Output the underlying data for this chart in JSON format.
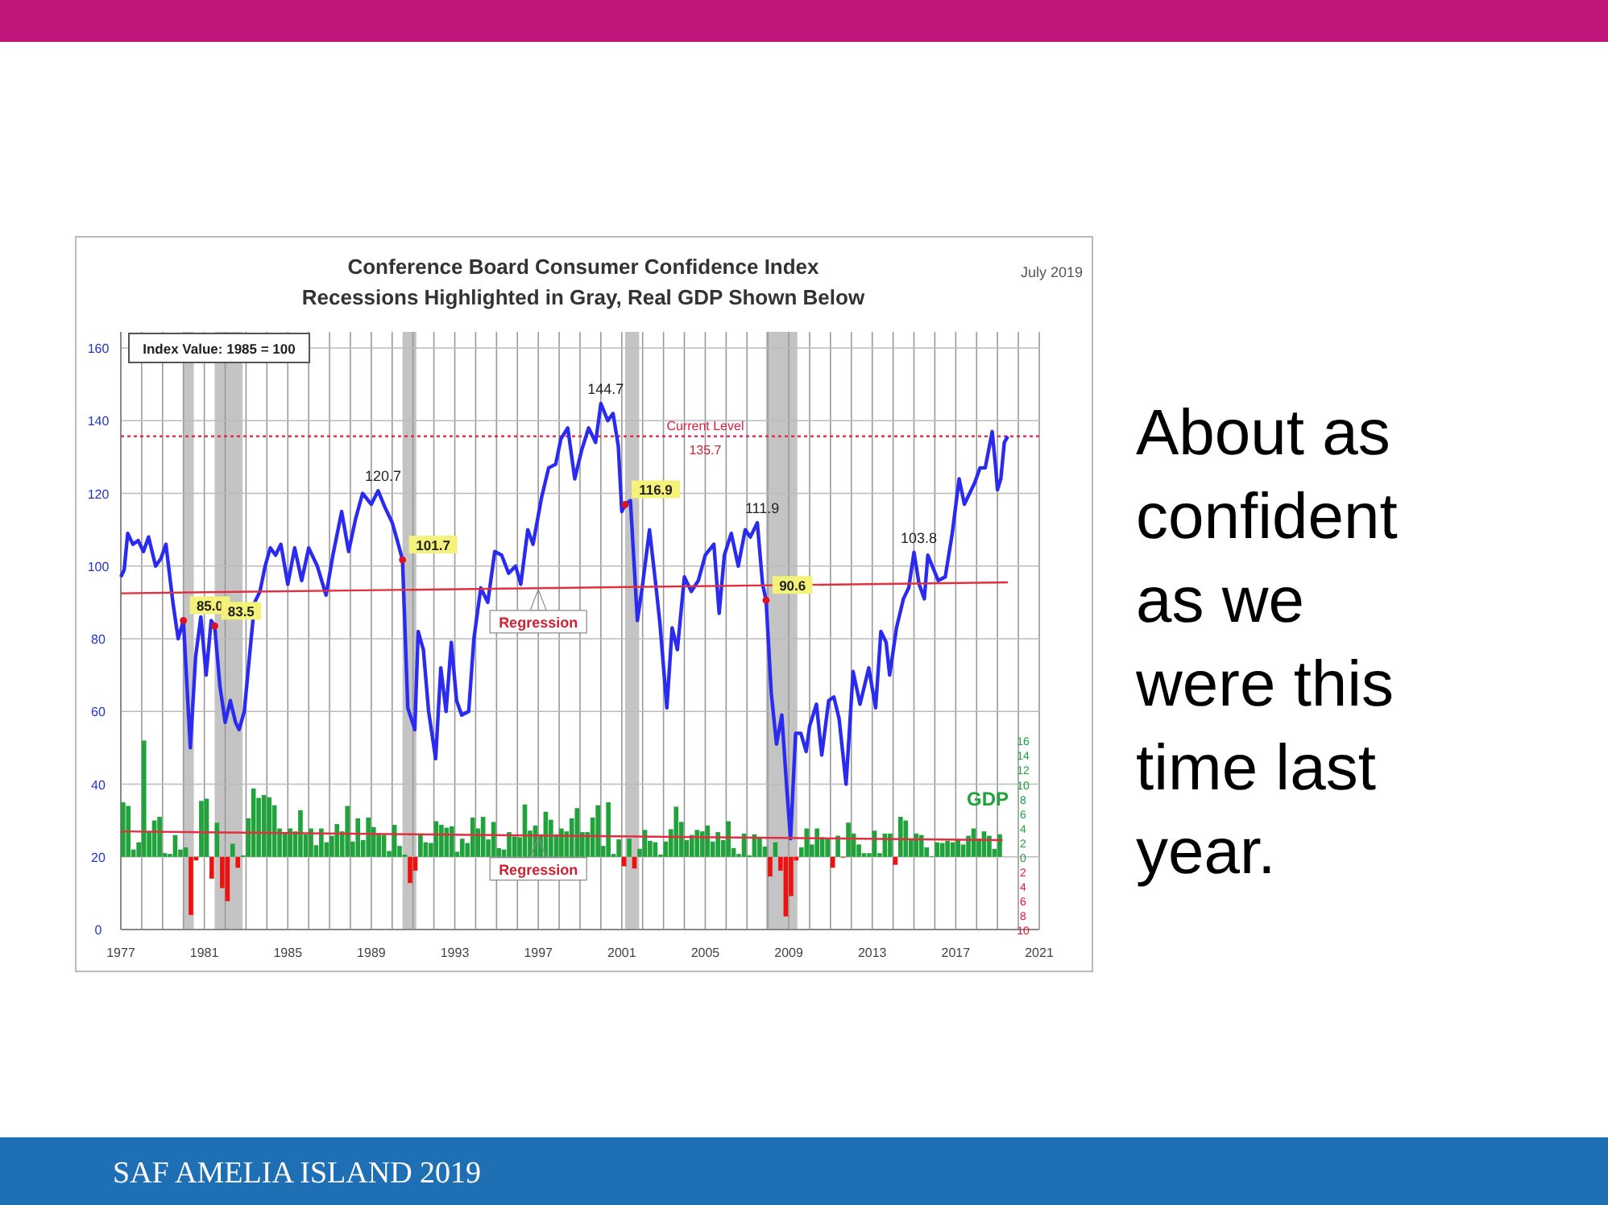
{
  "chart_data": {
    "type": "line",
    "title": "Conference Board Consumer Confidence Index",
    "subtitle": "Recessions Highlighted in Gray, Real GDP Shown Below",
    "y2label": "GDP",
    "grid": true,
    "marker": "none",
    "xlim": [
      "1977",
      "2021"
    ],
    "xticks": [
      {
        "value": "1977",
        "label": "1977"
      },
      {
        "value": "1978",
        "label": null
      },
      {
        "value": "1979",
        "label": null
      },
      {
        "value": "1980",
        "label": null
      },
      {
        "value": "1981",
        "label": "1981"
      },
      {
        "value": "1982",
        "label": null
      },
      {
        "value": "1983",
        "label": null
      },
      {
        "value": "1984",
        "label": null
      },
      {
        "value": "1985",
        "label": "1985"
      },
      {
        "value": "1986",
        "label": null
      },
      {
        "value": "1987",
        "label": null
      },
      {
        "value": "1988",
        "label": null
      },
      {
        "value": "1989",
        "label": "1989"
      },
      {
        "value": "1990",
        "label": null
      },
      {
        "value": "1991",
        "label": null
      },
      {
        "value": "1992",
        "label": null
      },
      {
        "value": "1993",
        "label": "1993"
      },
      {
        "value": "1994",
        "label": null
      },
      {
        "value": "1995",
        "label": null
      },
      {
        "value": "1996",
        "label": null
      },
      {
        "value": "1997",
        "label": "1997"
      },
      {
        "value": "1998",
        "label": null
      },
      {
        "value": "1999",
        "label": null
      },
      {
        "value": "2000",
        "label": null
      },
      {
        "value": "2001",
        "label": "2001"
      },
      {
        "value": "2002",
        "label": null
      },
      {
        "value": "2003",
        "label": null
      },
      {
        "value": "2004",
        "label": null
      },
      {
        "value": "2005",
        "label": "2005"
      },
      {
        "value": "2006",
        "label": null
      },
      {
        "value": "2007",
        "label": null
      },
      {
        "value": "2008",
        "label": null
      },
      {
        "value": "2009",
        "label": "2009"
      },
      {
        "value": "2010",
        "label": null
      },
      {
        "value": "2011",
        "label": null
      },
      {
        "value": "2012",
        "label": null
      },
      {
        "value": "2013",
        "label": "2013"
      },
      {
        "value": "2014",
        "label": null
      },
      {
        "value": "2015",
        "label": null
      },
      {
        "value": "2016",
        "label": null
      },
      {
        "value": "2017",
        "label": "2017"
      },
      {
        "value": "2018",
        "label": null
      },
      {
        "value": "2019",
        "label": null
      },
      {
        "value": "2020",
        "label": null
      },
      {
        "value": "2021",
        "label": "2021"
      }
    ],
    "ylim": [
      0,
      160
    ],
    "yticks": [
      0,
      20,
      40,
      60,
      80,
      100,
      120,
      140,
      160
    ],
    "y2lim": [
      -10,
      70
    ],
    "y2ticks": [
      {
        "value": -10,
        "label": "10"
      },
      {
        "value": -8,
        "label": "8"
      },
      {
        "value": -6,
        "label": "6"
      },
      {
        "value": -4,
        "label": "4"
      },
      {
        "value": -2,
        "label": "2"
      },
      0,
      2,
      4,
      6,
      8,
      10,
      12,
      14,
      16
    ],
    "bands": [
      {
        "axis": "x",
        "from": "1980-01",
        "to": "1980-07",
        "color": "#b0b0b0"
      },
      {
        "axis": "x",
        "from": "1981-07",
        "to": "1982-11",
        "color": "#b0b0b0"
      },
      {
        "axis": "x",
        "from": "1990-07",
        "to": "1991-03",
        "color": "#b0b0b0"
      },
      {
        "axis": "x",
        "from": "2001-03",
        "to": "2001-11",
        "color": "#b0b0b0"
      },
      {
        "axis": "x",
        "from": "2007-12",
        "to": "2009-06",
        "color": "#b0b0b0"
      }
    ],
    "ref_lines": [
      {
        "axis": "y",
        "value": 135.7,
        "label": "Current Level",
        "color": "#e02040",
        "line_style": "dotted"
      }
    ],
    "annotations": [
      "Index Value: 1985 = 100",
      "July 2019",
      "About as confident as we were this time last year.",
      "SAF AMELIA ISLAND 2019",
      {
        "text": "120.7",
        "x": "1989-05",
        "y": 120.7
      },
      {
        "text": "144.7",
        "x": "2000-01",
        "y": 144.7
      },
      {
        "text": "111.9",
        "x": "2007-07",
        "y": 111.9
      },
      {
        "text": "103.8",
        "x": "2015-01",
        "y": 103.8
      },
      {
        "text": "135.7",
        "x": "2005-01",
        "y": 135.7
      },
      {
        "text": "85.0",
        "x": "1980-01",
        "y": 85
      },
      {
        "text": "83.5",
        "x": "1981-07",
        "y": 83.5
      },
      {
        "text": "101.7",
        "x": "1990-07",
        "y": 101.7
      },
      {
        "text": "116.9",
        "x": "2001-03",
        "y": 116.9
      },
      {
        "text": "90.6",
        "x": "2007-12",
        "y": 90.6
      },
      {
        "text": "Regression",
        "x": "1997-01",
        "y": 94
      },
      {
        "text": "Regression",
        "x": "1997-01",
        "y": 26
      }
    ],
    "series": [
      {
        "type": "bar",
        "axis": "y2",
        "color": "#1fa33a",
        "x": [
          "1977-01",
          "1977-04",
          "1977-07",
          "1977-10",
          "1978-01",
          "1978-04",
          "1978-07",
          "1978-10",
          "1979-01",
          "1979-04",
          "1979-07",
          "1979-10",
          "1980-01",
          "1980-04",
          "1980-07",
          "1980-10",
          "1981-01",
          "1981-04",
          "1981-07",
          "1981-10",
          "1982-01",
          "1982-04",
          "1982-07",
          "1982-10",
          "1983-01",
          "1983-04",
          "1983-07",
          "1983-10",
          "1984-01",
          "1984-04",
          "1984-07",
          "1984-10",
          "1985-01",
          "1985-04",
          "1985-07",
          "1985-10",
          "1986-01",
          "1986-04",
          "1986-07",
          "1986-10",
          "1987-01",
          "1987-04",
          "1987-07",
          "1987-10",
          "1988-01",
          "1988-04",
          "1988-07",
          "1988-10",
          "1989-01",
          "1989-04",
          "1989-07",
          "1989-10",
          "1990-01",
          "1990-04",
          "1990-07",
          "1990-10",
          "1991-01",
          "1991-04",
          "1991-07",
          "1991-10",
          "1992-01",
          "1992-04",
          "1992-07",
          "1992-10",
          "1993-01",
          "1993-04",
          "1993-07",
          "1993-10",
          "1994-01",
          "1994-04",
          "1994-07",
          "1994-10",
          "1995-01",
          "1995-04",
          "1995-07",
          "1995-10",
          "1996-01",
          "1996-04",
          "1996-07",
          "1996-10",
          "1997-01",
          "1997-04",
          "1997-07",
          "1997-10",
          "1998-01",
          "1998-04",
          "1998-07",
          "1998-10",
          "1999-01",
          "1999-04",
          "1999-07",
          "1999-10",
          "2000-01",
          "2000-04",
          "2000-07",
          "2000-10",
          "2001-01",
          "2001-04",
          "2001-07",
          "2001-10",
          "2002-01",
          "2002-04",
          "2002-07",
          "2002-10",
          "2003-01",
          "2003-04",
          "2003-07",
          "2003-10",
          "2004-01",
          "2004-04",
          "2004-07",
          "2004-10",
          "2005-01",
          "2005-04",
          "2005-07",
          "2005-10",
          "2006-01",
          "2006-04",
          "2006-07",
          "2006-10",
          "2007-01",
          "2007-04",
          "2007-07",
          "2007-10",
          "2008-01",
          "2008-04",
          "2008-07",
          "2008-10",
          "2009-01",
          "2009-04",
          "2009-07",
          "2009-10",
          "2010-01",
          "2010-04",
          "2010-07",
          "2010-10",
          "2011-01",
          "2011-04",
          "2011-07",
          "2011-10",
          "2012-01",
          "2012-04",
          "2012-07",
          "2012-10",
          "2013-01",
          "2013-04",
          "2013-07",
          "2013-10",
          "2014-01",
          "2014-04",
          "2014-07",
          "2014-10",
          "2015-01",
          "2015-04",
          "2015-07",
          "2015-10",
          "2016-01",
          "2016-04",
          "2016-07",
          "2016-10",
          "2017-01",
          "2017-04",
          "2017-07",
          "2017-10",
          "2018-01",
          "2018-04",
          "2018-07",
          "2018-10",
          "2019-01"
        ],
        "values": [
          7.5,
          7,
          1,
          2,
          16,
          3.5,
          5,
          5.5,
          0.5,
          0.4,
          3,
          1,
          1.3,
          -8,
          -0.5,
          7.7,
          8,
          -3,
          4.7,
          -4.3,
          -6.1,
          1.8,
          -1.5,
          0.2,
          5.3,
          9.4,
          8.1,
          8.5,
          8.2,
          7.1,
          3.9,
          3.3,
          3.9,
          3.5,
          6.4,
          3.1,
          3.9,
          1.6,
          3.9,
          2,
          2.9,
          4.5,
          3.5,
          7,
          2.1,
          5.3,
          2.3,
          5.4,
          4.1,
          3.1,
          3,
          0.8,
          4.4,
          1.5,
          0.3,
          -3.6,
          -1.9,
          3.2,
          2,
          1.9,
          4.9,
          4.4,
          4,
          4.2,
          0.7,
          2.5,
          1.9,
          5.4,
          3.9,
          5.5,
          2.4,
          4.8,
          1.2,
          1,
          3.4,
          2.8,
          2.7,
          7.2,
          3.6,
          4.3,
          3.1,
          6.2,
          5.1,
          3.1,
          3.9,
          3.5,
          5.3,
          6.7,
          3.4,
          3.4,
          5.4,
          7.1,
          1.5,
          7.5,
          0.4,
          2.4,
          -1.3,
          2.5,
          -1.6,
          1.1,
          3.7,
          2.2,
          2,
          0.3,
          2.1,
          3.8,
          6.9,
          4.8,
          2.3,
          3,
          3.7,
          3.5,
          4.3,
          2.1,
          3.4,
          2.3,
          4.9,
          1.2,
          0.4,
          3.2,
          0.2,
          3.1,
          2.7,
          1.4,
          -2.7,
          2,
          -1.9,
          -8.2,
          -5.4,
          -0.5,
          1.3,
          3.9,
          1.7,
          3.9,
          2.7,
          2.5,
          -1.5,
          2.9,
          -0.1,
          4.7,
          3.2,
          1.7,
          0.5,
          0.5,
          3.6,
          0.5,
          3.2,
          3.2,
          -1.1,
          5.5,
          5,
          2.3,
          3.2,
          3,
          1.3,
          0.1,
          2,
          1.9,
          2.2,
          2,
          2.3,
          1.7,
          2.9,
          3.9,
          2.5,
          3.5,
          2.9,
          1.1,
          3.1
        ],
        "colors": [
          "#1fa33a",
          "#1fa33a",
          "#1fa33a",
          "#1fa33a",
          "#1fa33a",
          "#1fa33a",
          "#1fa33a",
          "#1fa33a",
          "#1fa33a",
          "#1fa33a",
          "#1fa33a",
          "#1fa33a",
          "#1fa33a",
          "#ee1111",
          "#ee1111",
          "#1fa33a",
          "#1fa33a",
          "#ee1111",
          "#1fa33a",
          "#ee1111",
          "#ee1111",
          "#1fa33a",
          "#ee1111",
          "#1fa33a",
          "#1fa33a",
          "#1fa33a",
          "#1fa33a",
          "#1fa33a",
          "#1fa33a",
          "#1fa33a",
          "#1fa33a",
          "#1fa33a",
          "#1fa33a",
          "#1fa33a",
          "#1fa33a",
          "#1fa33a",
          "#1fa33a",
          "#1fa33a",
          "#1fa33a",
          "#1fa33a",
          "#1fa33a",
          "#1fa33a",
          "#1fa33a",
          "#1fa33a",
          "#1fa33a",
          "#1fa33a",
          "#1fa33a",
          "#1fa33a",
          "#1fa33a",
          "#1fa33a",
          "#1fa33a",
          "#1fa33a",
          "#1fa33a",
          "#1fa33a",
          "#1fa33a",
          "#ee1111",
          "#ee1111",
          "#1fa33a",
          "#1fa33a",
          "#1fa33a",
          "#1fa33a",
          "#1fa33a",
          "#1fa33a",
          "#1fa33a",
          "#1fa33a",
          "#1fa33a",
          "#1fa33a",
          "#1fa33a",
          "#1fa33a",
          "#1fa33a",
          "#1fa33a",
          "#1fa33a",
          "#1fa33a",
          "#1fa33a",
          "#1fa33a",
          "#1fa33a",
          "#1fa33a",
          "#1fa33a",
          "#1fa33a",
          "#1fa33a",
          "#1fa33a",
          "#1fa33a",
          "#1fa33a",
          "#1fa33a",
          "#1fa33a",
          "#1fa33a",
          "#1fa33a",
          "#1fa33a",
          "#1fa33a",
          "#1fa33a",
          "#1fa33a",
          "#1fa33a",
          "#1fa33a",
          "#1fa33a",
          "#1fa33a",
          "#1fa33a",
          "#ee1111",
          "#1fa33a",
          "#ee1111",
          "#1fa33a",
          "#1fa33a",
          "#1fa33a",
          "#1fa33a",
          "#1fa33a",
          "#1fa33a",
          "#1fa33a",
          "#1fa33a",
          "#1fa33a",
          "#1fa33a",
          "#1fa33a",
          "#1fa33a",
          "#1fa33a",
          "#1fa33a",
          "#1fa33a",
          "#1fa33a",
          "#1fa33a",
          "#1fa33a",
          "#1fa33a",
          "#1fa33a",
          "#1fa33a",
          "#1fa33a",
          "#1fa33a",
          "#1fa33a",
          "#1fa33a",
          "#ee1111",
          "#1fa33a",
          "#ee1111",
          "#ee1111",
          "#ee1111",
          "#ee1111",
          "#1fa33a",
          "#1fa33a",
          "#1fa33a",
          "#1fa33a",
          "#1fa33a",
          "#1fa33a",
          "#ee1111",
          "#1fa33a",
          "#ee1111",
          "#1fa33a",
          "#1fa33a",
          "#1fa33a",
          "#1fa33a",
          "#1fa33a",
          "#1fa33a",
          "#1fa33a",
          "#1fa33a",
          "#1fa33a",
          "#ee1111",
          "#1fa33a",
          "#1fa33a",
          "#1fa33a",
          "#1fa33a",
          "#1fa33a",
          "#1fa33a",
          "#1fa33a",
          "#1fa33a",
          "#1fa33a",
          "#1fa33a",
          "#1fa33a",
          "#1fa33a",
          "#1fa33a",
          "#1fa33a",
          "#1fa33a",
          "#1fa33a",
          "#1fa33a",
          "#1fa33a",
          "#1fa33a",
          "#1fa33a"
        ]
      },
      {
        "color": "#2a2af0",
        "x": [
          "1977-01",
          "1977-03",
          "1977-05",
          "1977-08",
          "1977-11",
          "1978-02",
          "1978-05",
          "1978-09",
          "1978-12",
          "1979-03",
          "1979-07",
          "1979-10",
          "1980-01",
          "1980-05",
          "1980-08",
          "1980-11",
          "1981-02",
          "1981-05",
          "1981-07",
          "1981-10",
          "1982-01",
          "1982-04",
          "1982-07",
          "1982-09",
          "1982-12",
          "1983-03",
          "1983-06",
          "1983-09",
          "1983-12",
          "1984-03",
          "1984-06",
          "1984-09",
          "1985-01",
          "1985-05",
          "1985-09",
          "1986-01",
          "1986-06",
          "1986-11",
          "1987-03",
          "1987-08",
          "1987-12",
          "1988-04",
          "1988-08",
          "1989-01",
          "1989-05",
          "1989-09",
          "1990-01",
          "1990-04",
          "1990-07",
          "1990-10",
          "1991-02",
          "1991-04",
          "1991-07",
          "1991-10",
          "1992-02",
          "1992-05",
          "1992-08",
          "1992-11",
          "1993-02",
          "1993-05",
          "1993-09",
          "1993-12",
          "1994-04",
          "1994-08",
          "1994-12",
          "1995-04",
          "1995-08",
          "1995-12",
          "1996-03",
          "1996-07",
          "1996-10",
          "1997-03",
          "1997-07",
          "1997-11",
          "1998-02",
          "1998-06",
          "1998-10",
          "1999-02",
          "1999-06",
          "1999-10",
          "2000-01",
          "2000-05",
          "2000-08",
          "2000-11",
          "2001-01",
          "2001-03",
          "2001-06",
          "2001-10",
          "2002-01",
          "2002-05",
          "2002-09",
          "2002-11",
          "2003-03",
          "2003-06",
          "2003-09",
          "2004-01",
          "2004-05",
          "2004-09",
          "2005-01",
          "2005-06",
          "2005-09",
          "2005-12",
          "2006-04",
          "2006-08",
          "2006-12",
          "2007-03",
          "2007-07",
          "2007-10",
          "2007-12",
          "2008-03",
          "2008-06",
          "2008-09",
          "2008-12",
          "2009-02",
          "2009-05",
          "2009-08",
          "2009-11",
          "2010-01",
          "2010-05",
          "2010-08",
          "2010-12",
          "2011-03",
          "2011-06",
          "2011-10",
          "2012-02",
          "2012-06",
          "2012-09",
          "2012-11",
          "2013-03",
          "2013-06",
          "2013-09",
          "2013-11",
          "2014-03",
          "2014-07",
          "2014-10",
          "2015-01",
          "2015-04",
          "2015-07",
          "2015-09",
          "2016-03",
          "2016-07",
          "2016-11",
          "2017-03",
          "2017-06",
          "2017-09",
          "2017-12",
          "2018-03",
          "2018-06",
          "2018-10",
          "2018-12",
          "2019-01",
          "2019-03",
          "2019-05",
          "2019-07"
        ],
        "values": [
          97,
          99,
          109,
          106,
          107,
          104,
          108,
          100,
          102,
          106,
          90,
          80,
          85,
          50,
          75,
          86,
          70,
          85,
          83.5,
          67,
          57,
          63,
          57,
          55,
          60,
          75,
          90,
          93,
          100,
          105,
          103,
          106,
          95,
          105,
          96,
          105,
          100,
          92,
          103,
          115,
          104,
          113,
          120,
          117,
          120.7,
          116,
          112,
          107,
          101.7,
          61,
          55,
          82,
          77,
          60,
          47,
          72,
          60,
          79,
          63,
          59,
          60,
          80,
          94,
          90,
          104,
          103,
          98,
          100,
          95,
          110,
          106,
          119,
          127,
          128,
          135,
          138,
          124,
          132,
          138,
          134,
          144.7,
          140,
          142,
          133,
          115,
          116.9,
          118,
          85,
          95,
          110,
          93,
          84,
          61,
          83,
          77,
          97,
          93,
          96,
          103,
          106,
          87,
          103,
          109,
          100,
          110,
          108,
          111.9,
          95,
          90.6,
          65,
          51,
          59,
          38,
          25,
          54,
          54,
          49,
          56,
          62,
          48,
          63,
          64,
          58,
          40,
          71,
          62,
          68,
          72,
          61,
          82,
          79,
          70,
          83,
          91,
          94,
          103.8,
          95,
          91,
          103,
          96,
          97,
          109,
          124,
          117,
          120,
          123,
          127,
          127,
          137,
          127,
          121,
          124,
          134,
          135.7
        ]
      },
      {
        "type": "line",
        "color": "#e03040",
        "x": [
          "1977-01",
          "2019-07"
        ],
        "values": [
          92.5,
          95.5
        ]
      },
      {
        "type": "line",
        "axis": "y2",
        "color": "#e03040",
        "x": [
          "1977-01",
          "2019-04"
        ],
        "values": [
          3.5,
          2.3
        ]
      }
    ]
  }
}
